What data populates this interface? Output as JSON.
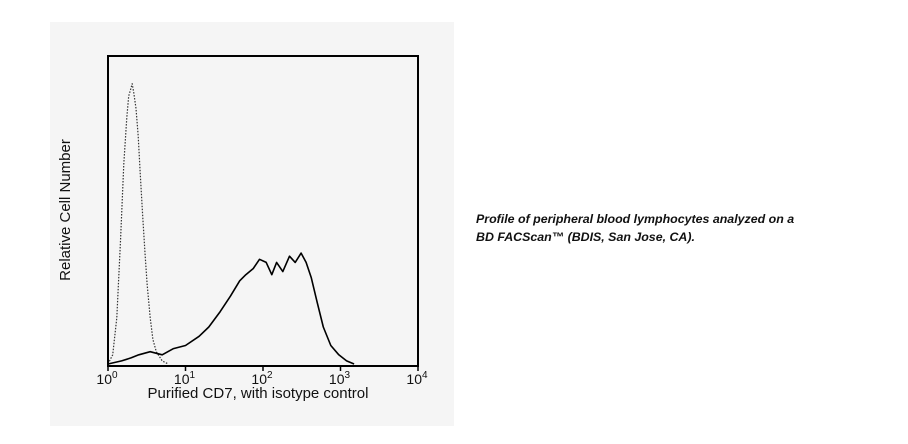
{
  "chart_data": {
    "type": "line",
    "xscale": "log",
    "xlim": [
      1,
      10000
    ],
    "ylim": [
      0,
      1.0
    ],
    "xlabel": "Purified CD7, with isotype control",
    "ylabel": "Relative Cell Number",
    "x_ticks": [
      {
        "value": 1,
        "base": "10",
        "exp": "0"
      },
      {
        "value": 10,
        "base": "10",
        "exp": "1"
      },
      {
        "value": 100,
        "base": "10",
        "exp": "2"
      },
      {
        "value": 1000,
        "base": "10",
        "exp": "3"
      },
      {
        "value": 10000,
        "base": "10",
        "exp": "4"
      }
    ],
    "grid": false,
    "series": [
      {
        "style": "dotted",
        "color": "#333333",
        "points": [
          [
            1.0,
            0.0
          ],
          [
            1.15,
            0.03
          ],
          [
            1.3,
            0.15
          ],
          [
            1.45,
            0.4
          ],
          [
            1.6,
            0.65
          ],
          [
            1.75,
            0.8
          ],
          [
            1.85,
            0.87
          ],
          [
            1.95,
            0.89
          ],
          [
            2.05,
            0.91
          ],
          [
            2.15,
            0.88
          ],
          [
            2.3,
            0.83
          ],
          [
            2.45,
            0.74
          ],
          [
            2.6,
            0.62
          ],
          [
            2.8,
            0.48
          ],
          [
            3.0,
            0.36
          ],
          [
            3.2,
            0.26
          ],
          [
            3.5,
            0.15
          ],
          [
            3.8,
            0.08
          ],
          [
            4.2,
            0.04
          ],
          [
            5.0,
            0.01
          ],
          [
            6.0,
            0.0
          ]
        ]
      },
      {
        "style": "solid",
        "color": "#000000",
        "points": [
          [
            1.0,
            0.0
          ],
          [
            1.5,
            0.01
          ],
          [
            2.0,
            0.02
          ],
          [
            2.5,
            0.03
          ],
          [
            3.5,
            0.04
          ],
          [
            5.0,
            0.03
          ],
          [
            7.0,
            0.05
          ],
          [
            10.0,
            0.06
          ],
          [
            15.0,
            0.09
          ],
          [
            20.0,
            0.12
          ],
          [
            28.0,
            0.17
          ],
          [
            38.0,
            0.22
          ],
          [
            50.0,
            0.27
          ],
          [
            60.0,
            0.29
          ],
          [
            75.0,
            0.31
          ],
          [
            90.0,
            0.34
          ],
          [
            110.0,
            0.33
          ],
          [
            130.0,
            0.29
          ],
          [
            150.0,
            0.33
          ],
          [
            180.0,
            0.3
          ],
          [
            220.0,
            0.35
          ],
          [
            260.0,
            0.33
          ],
          [
            310.0,
            0.36
          ],
          [
            360.0,
            0.33
          ],
          [
            420.0,
            0.28
          ],
          [
            500.0,
            0.2
          ],
          [
            600.0,
            0.12
          ],
          [
            750.0,
            0.06
          ],
          [
            950.0,
            0.03
          ],
          [
            1200.0,
            0.01
          ],
          [
            1500.0,
            0.0
          ]
        ]
      }
    ]
  },
  "caption": {
    "line1": "Profile of peripheral blood lymphocytes analyzed on a",
    "line2": "BD FACScan™ (BDIS, San Jose, CA)."
  }
}
